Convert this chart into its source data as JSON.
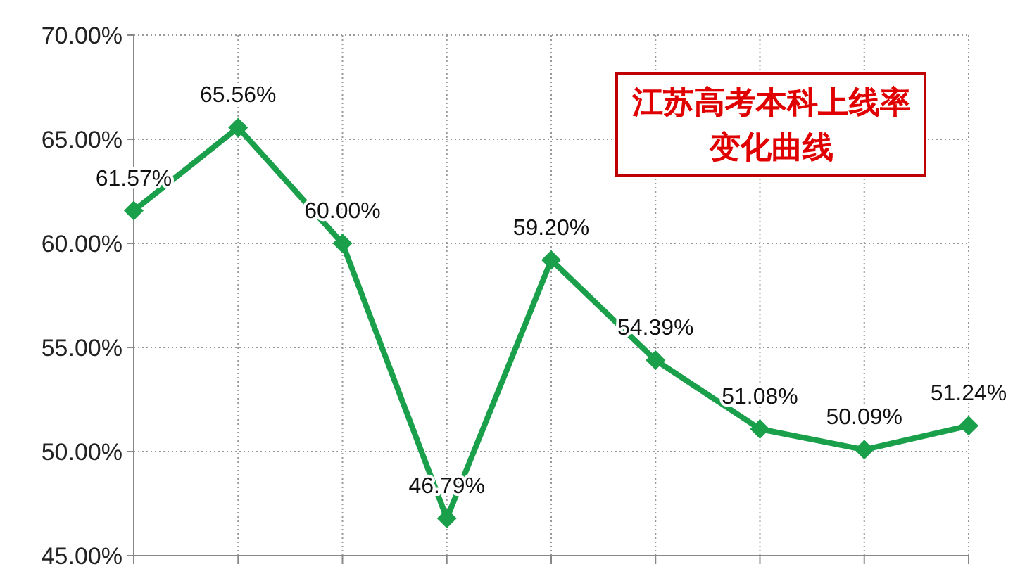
{
  "chart_data": {
    "type": "line",
    "title": "江苏高考本科上线率变化曲线",
    "categories": [
      null,
      null,
      null,
      null,
      null,
      null,
      null,
      null,
      null
    ],
    "series": [
      {
        "color": "#1aa04a",
        "values": [
          61.57,
          65.56,
          60.0,
          46.79,
          59.2,
          54.39,
          51.08,
          50.09,
          51.24
        ],
        "value_labels": [
          "61.57%",
          "65.56%",
          "60.00%",
          "46.79%",
          "59.20%",
          "54.39%",
          "51.08%",
          "50.09%",
          "51.24%"
        ]
      }
    ],
    "ylim": [
      45,
      70
    ],
    "yticks": [
      {
        "value": 45,
        "label": "45.00%"
      },
      {
        "value": 50,
        "label": "50.00%"
      },
      {
        "value": 55,
        "label": "55.00%"
      },
      {
        "value": 60,
        "label": "60.00%"
      },
      {
        "value": 65,
        "label": "65.00%"
      },
      {
        "value": 70,
        "label": "70.00%"
      }
    ],
    "grid": true,
    "marker": "diamond",
    "line_style": "solid"
  }
}
